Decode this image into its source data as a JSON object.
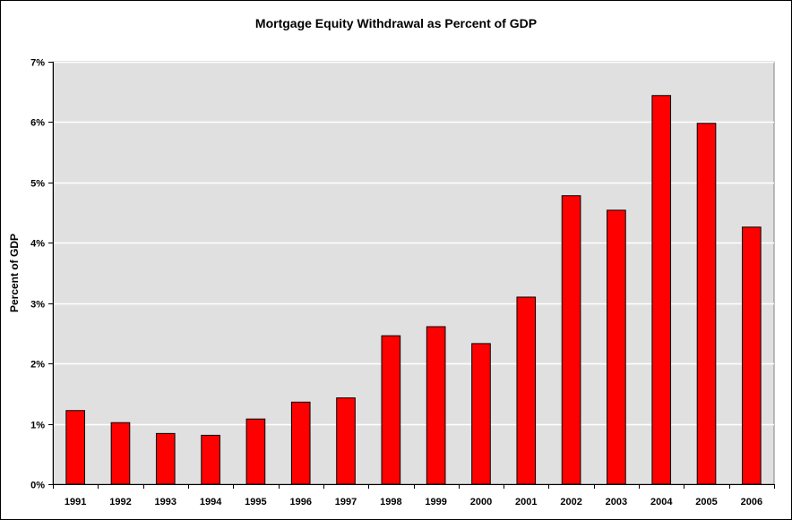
{
  "chart_data": {
    "type": "bar",
    "title": "Mortgage Equity Withdrawal as Percent of GDP",
    "xlabel": "",
    "ylabel": "Percent of GDP",
    "categories": [
      "1991",
      "1992",
      "1993",
      "1994",
      "1995",
      "1996",
      "1997",
      "1998",
      "1999",
      "2000",
      "2001",
      "2002",
      "2003",
      "2004",
      "2005",
      "2006"
    ],
    "values": [
      1.22,
      1.02,
      0.84,
      0.81,
      1.08,
      1.36,
      1.43,
      2.46,
      2.61,
      2.33,
      3.1,
      4.78,
      4.54,
      6.44,
      5.98,
      4.26
    ],
    "ylim": [
      0,
      7
    ],
    "yticks": [
      0,
      1,
      2,
      3,
      4,
      5,
      6,
      7
    ],
    "ytick_labels": [
      "0%",
      "1%",
      "2%",
      "3%",
      "4%",
      "5%",
      "6%",
      "7%"
    ],
    "grid": true,
    "legend": "none",
    "colors": {
      "bar": "#ff0000",
      "bar_edge": "#000000",
      "plot_bg": "#e0e0e0",
      "grid": "#ffffff"
    }
  }
}
